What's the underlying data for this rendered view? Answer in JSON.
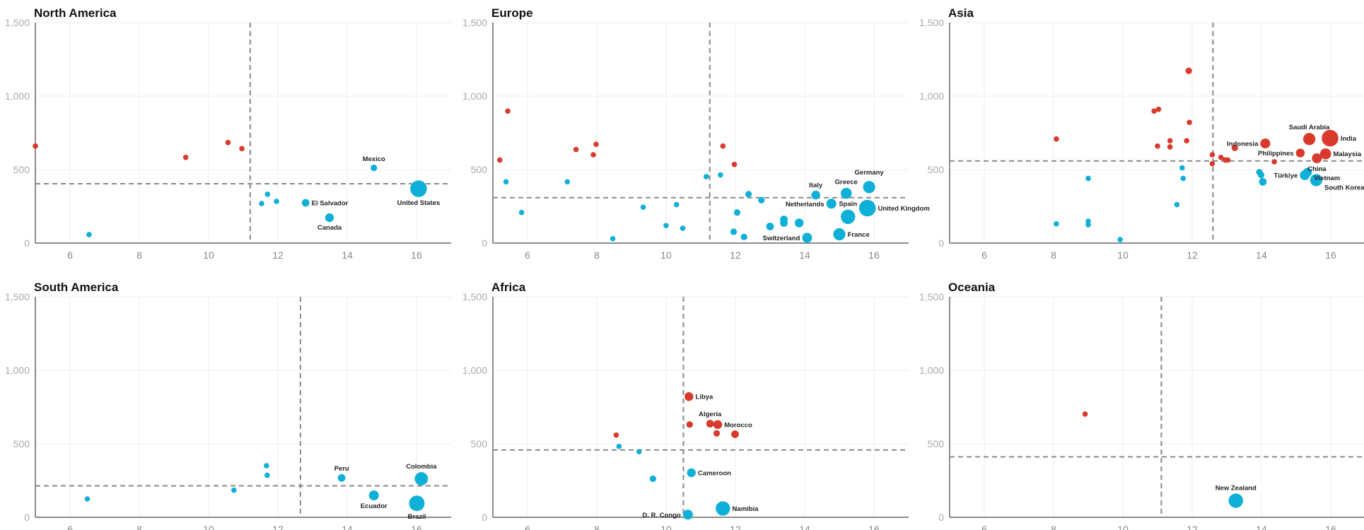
{
  "colors": {
    "above": "#d93a2b",
    "below": "#0fb0d8",
    "reference": "#888888",
    "grid": "#eeeeee"
  },
  "chart_data": [
    {
      "type": "scatter",
      "title": "North America",
      "xlim": [
        5,
        17
      ],
      "ylim": [
        0,
        1500
      ],
      "xticks": [
        6,
        8,
        10,
        12,
        14,
        16
      ],
      "yticks": [
        "0",
        "500",
        "1,000",
        "1,500"
      ],
      "grid": true,
      "reference_x": 11.2,
      "reference_y": 404,
      "points": [
        {
          "x": 5.0,
          "y": 660,
          "group": "above",
          "size": 1
        },
        {
          "x": 9.34,
          "y": 583,
          "group": "above",
          "size": 1
        },
        {
          "x": 10.56,
          "y": 684,
          "group": "above",
          "size": 1
        },
        {
          "x": 10.96,
          "y": 643,
          "group": "above",
          "size": 1
        },
        {
          "x": 6.55,
          "y": 58,
          "group": "below",
          "size": 1
        },
        {
          "x": 11.53,
          "y": 269,
          "group": "below",
          "size": 1
        },
        {
          "x": 11.7,
          "y": 332,
          "group": "below",
          "size": 1
        },
        {
          "x": 11.96,
          "y": 284,
          "group": "below",
          "size": 1
        },
        {
          "x": 12.8,
          "y": 274,
          "group": "below",
          "size": 2,
          "label": "El Salvador",
          "label_pos": "right"
        },
        {
          "x": 13.49,
          "y": 173,
          "group": "below",
          "size": 2.5,
          "label": "Canada",
          "label_pos": "below"
        },
        {
          "x": 14.77,
          "y": 512,
          "group": "below",
          "size": 1.5,
          "label": "Mexico",
          "label_pos": "above"
        },
        {
          "x": 16.06,
          "y": 370,
          "group": "below",
          "size": 6,
          "label": "United States",
          "label_pos": "below"
        }
      ]
    },
    {
      "type": "scatter",
      "title": "Europe",
      "xlim": [
        5,
        17
      ],
      "ylim": [
        0,
        1500
      ],
      "xticks": [
        6,
        8,
        10,
        12,
        14,
        16
      ],
      "yticks": [
        "0",
        "500",
        "1,000",
        "1,500"
      ],
      "grid": true,
      "reference_x": 11.26,
      "reference_y": 309,
      "points": [
        {
          "x": 5.2,
          "y": 565,
          "group": "above",
          "size": 1
        },
        {
          "x": 5.43,
          "y": 898,
          "group": "above",
          "size": 1
        },
        {
          "x": 7.4,
          "y": 637,
          "group": "above",
          "size": 1
        },
        {
          "x": 7.9,
          "y": 601,
          "group": "above",
          "size": 1
        },
        {
          "x": 7.98,
          "y": 672,
          "group": "above",
          "size": 1
        },
        {
          "x": 11.64,
          "y": 660,
          "group": "above",
          "size": 1
        },
        {
          "x": 11.97,
          "y": 535,
          "group": "above",
          "size": 1
        },
        {
          "x": 5.38,
          "y": 417,
          "group": "below",
          "size": 1
        },
        {
          "x": 5.83,
          "y": 208,
          "group": "below",
          "size": 1
        },
        {
          "x": 7.15,
          "y": 417,
          "group": "below",
          "size": 1
        },
        {
          "x": 8.46,
          "y": 30,
          "group": "below",
          "size": 1
        },
        {
          "x": 9.34,
          "y": 244,
          "group": "below",
          "size": 1
        },
        {
          "x": 10.0,
          "y": 119,
          "group": "below",
          "size": 1
        },
        {
          "x": 10.3,
          "y": 262,
          "group": "below",
          "size": 1
        },
        {
          "x": 10.48,
          "y": 101,
          "group": "below",
          "size": 1
        },
        {
          "x": 11.16,
          "y": 452,
          "group": "below",
          "size": 1
        },
        {
          "x": 11.57,
          "y": 464,
          "group": "below",
          "size": 1
        },
        {
          "x": 11.95,
          "y": 77,
          "group": "below",
          "size": 1.5
        },
        {
          "x": 12.05,
          "y": 208,
          "group": "below",
          "size": 1.5
        },
        {
          "x": 12.25,
          "y": 42,
          "group": "below",
          "size": 1.5
        },
        {
          "x": 12.38,
          "y": 333,
          "group": "below",
          "size": 1.5
        },
        {
          "x": 12.75,
          "y": 292,
          "group": "below",
          "size": 1.5
        },
        {
          "x": 13.0,
          "y": 113,
          "group": "below",
          "size": 2
        },
        {
          "x": 13.4,
          "y": 161,
          "group": "below",
          "size": 2
        },
        {
          "x": 13.4,
          "y": 137,
          "group": "below",
          "size": 2
        },
        {
          "x": 13.84,
          "y": 137,
          "group": "below",
          "size": 2.5
        },
        {
          "x": 14.32,
          "y": 327,
          "group": "below",
          "size": 2.5,
          "label": "Italy",
          "label_pos": "above"
        },
        {
          "x": 14.77,
          "y": 268,
          "group": "below",
          "size": 3,
          "label": "Netherlands",
          "label_pos": "left"
        },
        {
          "x": 15.2,
          "y": 339,
          "group": "below",
          "size": 3.5,
          "label": "Greece",
          "label_pos": "above"
        },
        {
          "x": 15.86,
          "y": 381,
          "group": "below",
          "size": 4,
          "label": "Germany",
          "label_pos": "above"
        },
        {
          "x": 15.25,
          "y": 179,
          "group": "below",
          "size": 5,
          "label": "Spain",
          "label_pos": "above"
        },
        {
          "x": 15.81,
          "y": 238,
          "group": "below",
          "size": 6,
          "label": "United Kingdom",
          "label_pos": "right"
        },
        {
          "x": 14.07,
          "y": 36,
          "group": "below",
          "size": 3,
          "label": "Switzerland",
          "label_pos": "left"
        },
        {
          "x": 15.0,
          "y": 60,
          "group": "below",
          "size": 4,
          "label": "France",
          "label_pos": "right"
        }
      ]
    },
    {
      "type": "scatter",
      "title": "Asia",
      "xlim": [
        5,
        17
      ],
      "ylim": [
        0,
        1500
      ],
      "xticks": [
        6,
        8,
        10,
        12,
        14,
        16
      ],
      "yticks": [
        "0",
        "500",
        "1,000",
        "1,500"
      ],
      "grid": true,
      "reference_x": 12.6,
      "reference_y": 559,
      "points": [
        {
          "x": 8.08,
          "y": 708,
          "group": "above",
          "size": 1
        },
        {
          "x": 10.9,
          "y": 898,
          "group": "above",
          "size": 1
        },
        {
          "x": 11.03,
          "y": 910,
          "group": "above",
          "size": 1
        },
        {
          "x": 11.9,
          "y": 1172,
          "group": "above",
          "size": 1.5
        },
        {
          "x": 11.92,
          "y": 821,
          "group": "above",
          "size": 1
        },
        {
          "x": 11.0,
          "y": 660,
          "group": "above",
          "size": 1
        },
        {
          "x": 11.36,
          "y": 696,
          "group": "above",
          "size": 1
        },
        {
          "x": 11.36,
          "y": 654,
          "group": "above",
          "size": 1
        },
        {
          "x": 11.84,
          "y": 696,
          "group": "above",
          "size": 1
        },
        {
          "x": 12.58,
          "y": 601,
          "group": "above",
          "size": 1
        },
        {
          "x": 12.58,
          "y": 540,
          "group": "above",
          "size": 1
        },
        {
          "x": 12.83,
          "y": 583,
          "group": "above",
          "size": 1
        },
        {
          "x": 12.95,
          "y": 565,
          "group": "above",
          "size": 1
        },
        {
          "x": 13.03,
          "y": 565,
          "group": "above",
          "size": 1
        },
        {
          "x": 13.23,
          "y": 648,
          "group": "above",
          "size": 1.5
        },
        {
          "x": 14.37,
          "y": 553,
          "group": "above",
          "size": 1
        },
        {
          "x": 14.11,
          "y": 678,
          "group": "above",
          "size": 3,
          "label": "Indonesia",
          "label_pos": "left"
        },
        {
          "x": 15.12,
          "y": 613,
          "group": "above",
          "size": 2.5,
          "label": "Philippines",
          "label_pos": "left"
        },
        {
          "x": 15.38,
          "y": 708,
          "group": "above",
          "size": 4,
          "label": "Saudi Arabia",
          "label_pos": "above"
        },
        {
          "x": 15.98,
          "y": 714,
          "group": "above",
          "size": 6,
          "label": "India",
          "label_pos": "right"
        },
        {
          "x": 15.85,
          "y": 607,
          "group": "above",
          "size": 3.5,
          "label": "Malaysia",
          "label_pos": "right"
        },
        {
          "x": 15.6,
          "y": 577,
          "group": "above",
          "size": 3,
          "label": "China",
          "label_pos": "below"
        },
        {
          "x": 8.08,
          "y": 131,
          "group": "below",
          "size": 1
        },
        {
          "x": 9.0,
          "y": 440,
          "group": "below",
          "size": 1
        },
        {
          "x": 9.0,
          "y": 125,
          "group": "below",
          "size": 1
        },
        {
          "x": 9.0,
          "y": 149,
          "group": "below",
          "size": 1
        },
        {
          "x": 9.92,
          "y": 24,
          "group": "below",
          "size": 1
        },
        {
          "x": 11.56,
          "y": 262,
          "group": "below",
          "size": 1
        },
        {
          "x": 11.74,
          "y": 440,
          "group": "below",
          "size": 1
        },
        {
          "x": 11.71,
          "y": 512,
          "group": "below",
          "size": 1
        },
        {
          "x": 13.94,
          "y": 482,
          "group": "below",
          "size": 1.5
        },
        {
          "x": 13.99,
          "y": 464,
          "group": "below",
          "size": 1.5
        },
        {
          "x": 14.04,
          "y": 417,
          "group": "below",
          "size": 2
        },
        {
          "x": 15.25,
          "y": 462,
          "group": "below",
          "size": 3,
          "label": "Türkiye",
          "label_pos": "left"
        },
        {
          "x": 15.33,
          "y": 482,
          "group": "below",
          "size": 2.5,
          "label": "Vietnam",
          "label_pos": "right"
        },
        {
          "x": 15.58,
          "y": 428,
          "group": "below",
          "size": 4,
          "label": "South Korea",
          "label_pos": "right"
        }
      ]
    },
    {
      "type": "scatter",
      "title": "South America",
      "xlim": [
        5,
        17
      ],
      "ylim": [
        0,
        1500
      ],
      "xticks": [
        6,
        8,
        10,
        12,
        14,
        16
      ],
      "yticks": [
        "0",
        "500",
        "1,000",
        "1,500"
      ],
      "grid": true,
      "reference_x": 12.65,
      "reference_y": 214,
      "points": [
        {
          "x": 6.5,
          "y": 125,
          "group": "below",
          "size": 1
        },
        {
          "x": 10.73,
          "y": 184,
          "group": "below",
          "size": 1
        },
        {
          "x": 11.67,
          "y": 351,
          "group": "below",
          "size": 1
        },
        {
          "x": 11.69,
          "y": 286,
          "group": "below",
          "size": 1
        },
        {
          "x": 13.84,
          "y": 268,
          "group": "below",
          "size": 2,
          "label": "Peru",
          "label_pos": "above"
        },
        {
          "x": 14.77,
          "y": 149,
          "group": "below",
          "size": 3,
          "label": "Ecuador",
          "label_pos": "below"
        },
        {
          "x": 16.14,
          "y": 262,
          "group": "below",
          "size": 4.5,
          "label": "Colombia",
          "label_pos": "above"
        },
        {
          "x": 16.01,
          "y": 95,
          "group": "below",
          "size": 5.5,
          "label": "Brazil",
          "label_pos": "below"
        }
      ]
    },
    {
      "type": "scatter",
      "title": "Africa",
      "xlim": [
        5,
        17
      ],
      "ylim": [
        0,
        1500
      ],
      "xticks": [
        6,
        8,
        10,
        12,
        14,
        16
      ],
      "yticks": [
        "0",
        "500",
        "1,000",
        "1,500"
      ],
      "grid": true,
      "reference_x": 10.5,
      "reference_y": 458,
      "points": [
        {
          "x": 8.56,
          "y": 559,
          "group": "above",
          "size": 1
        },
        {
          "x": 10.68,
          "y": 631,
          "group": "above",
          "size": 1.5
        },
        {
          "x": 11.46,
          "y": 571,
          "group": "above",
          "size": 1.5
        },
        {
          "x": 11.99,
          "y": 565,
          "group": "above",
          "size": 2
        },
        {
          "x": 10.66,
          "y": 821,
          "group": "above",
          "size": 2.5,
          "label": "Libya",
          "label_pos": "right"
        },
        {
          "x": 11.27,
          "y": 637,
          "group": "above",
          "size": 2,
          "label": "Algeria",
          "label_pos": "above"
        },
        {
          "x": 11.49,
          "y": 631,
          "group": "above",
          "size": 2.5,
          "label": "Morocco",
          "label_pos": "right"
        },
        {
          "x": 8.64,
          "y": 482,
          "group": "below",
          "size": 1
        },
        {
          "x": 9.22,
          "y": 446,
          "group": "below",
          "size": 1
        },
        {
          "x": 9.62,
          "y": 262,
          "group": "below",
          "size": 1.5
        },
        {
          "x": 10.73,
          "y": 303,
          "group": "below",
          "size": 2.5,
          "label": "Cameroon",
          "label_pos": "right"
        },
        {
          "x": 10.63,
          "y": 18,
          "group": "below",
          "size": 3,
          "label": "D. R. Congo",
          "label_pos": "left"
        },
        {
          "x": 11.64,
          "y": 60,
          "group": "below",
          "size": 5,
          "label": "Namibia",
          "label_pos": "right"
        }
      ]
    },
    {
      "type": "scatter",
      "title": "Oceania",
      "xlim": [
        5,
        17
      ],
      "ylim": [
        0,
        1500
      ],
      "xticks": [
        6,
        8,
        10,
        12,
        14,
        16
      ],
      "yticks": [
        "0",
        "500",
        "1,000",
        "1,500"
      ],
      "grid": true,
      "reference_x": 11.11,
      "reference_y": 411,
      "points": [
        {
          "x": 8.91,
          "y": 702,
          "group": "above",
          "size": 1
        },
        {
          "x": 13.26,
          "y": 113,
          "group": "below",
          "size": 5,
          "label": "New Zealand",
          "label_pos": "above"
        }
      ]
    }
  ]
}
